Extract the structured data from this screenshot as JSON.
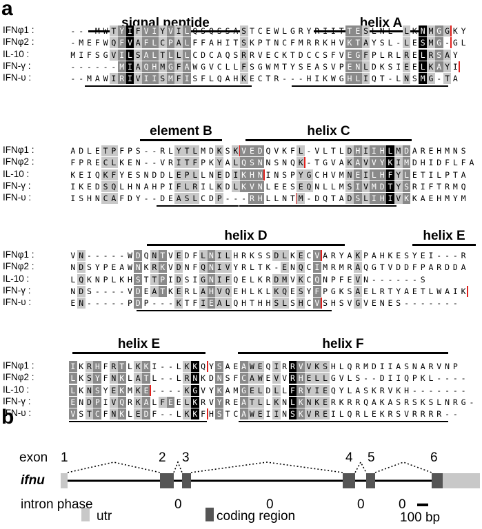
{
  "panel_a_label": "a",
  "panel_b_label": "b",
  "alignment": {
    "row_names": [
      "IFNφ1 :",
      "IFNφ2 :",
      "IL-10 :",
      "IFN-γ :",
      "IFN-υ :"
    ],
    "blocks": [
      {
        "features": [
          {
            "label": "signal peptide"
          },
          {
            "label": "helix A"
          }
        ],
        "rows": [
          "---MWTYIFVIYVILQSQSSASTCEWLGRYRIITTESLNL-LKNMGGKY",
          "-MEFWQFVAFLCPALFFAHITSKPTNCFMRRKHVKTAYSL-LESMG-GL",
          "MIFSGVILSALTLLLCDCAQSRRVECKTDCCSFVEGFPLRLRELRSAY",
          "------MIAQHMGFAWGVCLLFSGWMTYSEASVPENLDKSIEELKAYI",
          "--MAWIRIVIISMFISFLQAHKECTR---HIKWGHLIQT-LNSMG-TA"
        ]
      },
      {
        "features": [
          {
            "label": "element B"
          },
          {
            "label": "helix C"
          }
        ],
        "rows": [
          "ADLETPFPS--RLYTLMDKSKVEDQVKFL-VLTLDHIIHLMDAREHMNS",
          "FPRECLKEN--VRITFPKYALQSNNSNQK-TGVAKAVVYKIMDHIDFLFA",
          "KEIQKFYESNDDLEPLLNEDIKHNINSPYGCHVMNEILHFYLETILPTA",
          "IKEDSQLHNAHPIFLRILKDLKVNLEESEQNLLMSIVMDTYSRIFTRMQ",
          "ISHNCAFDY--DEASLCDP---RHLLNTM-DQTADSLIHIVKKAEHMYM"
        ]
      },
      {
        "features": [
          {
            "label": "helix D"
          },
          {
            "label": "helix E"
          }
        ],
        "rows": [
          "VN-----WDQNTVEDFLNILHRKSSDLKECVARYAKPAHKESYEI---R",
          "NDSYPEAWNKRKVDNFQNIVYRLTK-ENQCIMRMRAQGTVDDFPARDDA",
          "LQKNPLKHSTTPIDSIGNIFQELKRDMVKCQNPFEVN------S",
          "NDS----VDEATKERLAHVQEHLKLKQESYFPGKSAELRTYAETLWAIK",
          "EN-----PDP---KTFIEALQHTHHSLSHCVSHSVGVENES-------"
        ]
      },
      {
        "features": [
          {
            "label": "helix E"
          },
          {
            "label": "helix F"
          }
        ],
        "rows": [
          "IKRHFRTLKKI--LKKQYSAEAWEQIRRVVKSHLQRMDIIASNARVNP",
          "LKSYFNKLATL--LRNKDNSFCAWEVVRHELLGVLS--DIIQPKL----",
          "LKNSYEKMKE----KGVYKAMGELDLLFRYIEQYLASKRVKH-------",
          "ENDPIVQRKALFEELKRVYREATLLKNLKNKERKRRQAKASRSKSLNRG-",
          "VSTCFNKLEDF--LKKFHSTCAWEIINSKVREILQRLEKRSVRRRR--"
        ]
      }
    ]
  },
  "gene_structure": {
    "exon_label": "exon",
    "exon_numbers": [
      "1",
      "2",
      "3",
      "4",
      "5",
      "6"
    ],
    "gene_name": "ifnu",
    "intron_phase_label": "intron phase",
    "intron_phases": [
      "0",
      "0",
      "0",
      "0"
    ],
    "legend": {
      "utr": "utr",
      "coding": "coding region",
      "scale": "100 bp"
    },
    "colors": {
      "utr": "#c8c8c8",
      "coding": "#555555",
      "red_marker": "#e0201c"
    }
  }
}
